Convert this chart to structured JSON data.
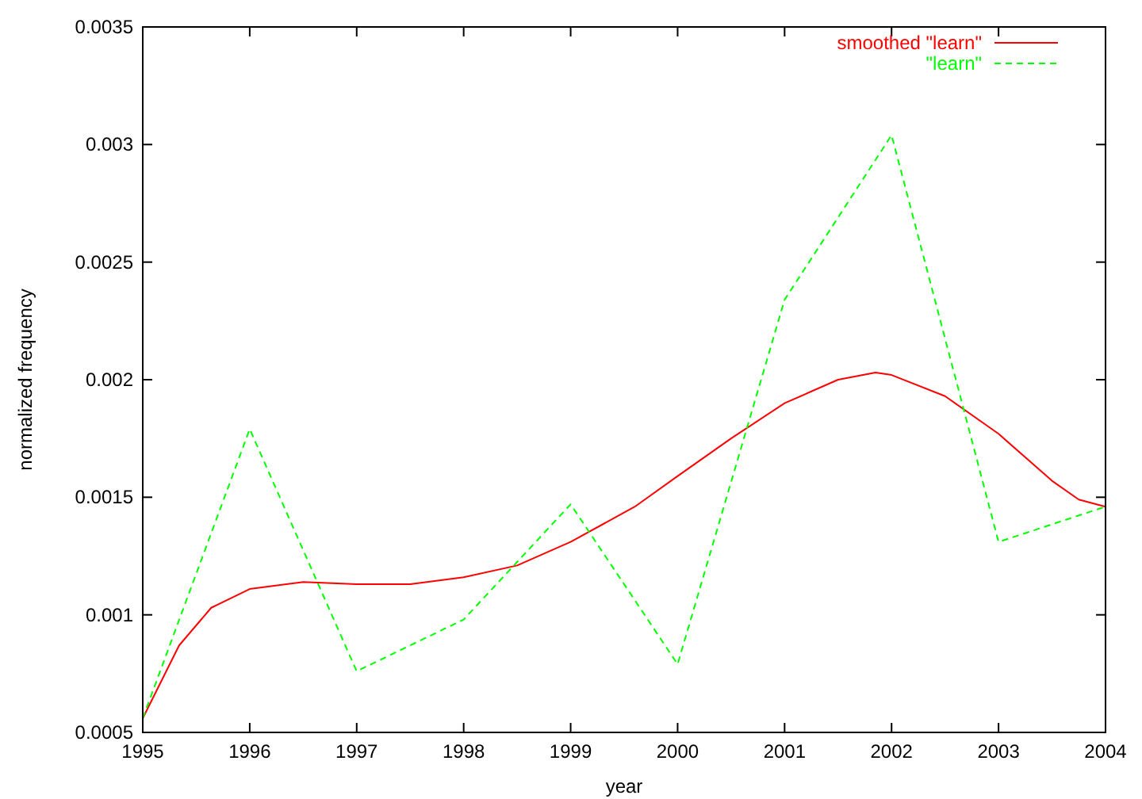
{
  "chart_data": {
    "type": "line",
    "xlabel": "year",
    "ylabel": "normalized frequency",
    "xlim": [
      1995,
      2004
    ],
    "xticks": [
      1995,
      1996,
      1997,
      1998,
      1999,
      2000,
      2001,
      2002,
      2003,
      2004
    ],
    "ylim": [
      0.0005,
      0.0035
    ],
    "yticks": [
      0.0005,
      0.001,
      0.0015,
      0.002,
      0.0025,
      0.003,
      0.0035
    ],
    "grid": false,
    "legend": "top right",
    "marker": "none",
    "series": [
      {
        "name": "smoothed \"learn\"",
        "color": "#ff0000",
        "line_style": "solid",
        "x": [
          1995,
          1995.34,
          1995.64,
          1996,
          1996.5,
          1997,
          1997.5,
          1998,
          1998.5,
          1999,
          1999.6,
          2000,
          2000.5,
          2001,
          2001.5,
          2001.85,
          2002,
          2002.5,
          2003,
          2003.5,
          2003.75,
          2004
        ],
        "values": [
          0.00056,
          0.00087,
          0.00103,
          0.00111,
          0.00114,
          0.00113,
          0.00113,
          0.00116,
          0.00121,
          0.00131,
          0.00146,
          0.00159,
          0.00175,
          0.0019,
          0.002,
          0.00203,
          0.00202,
          0.00193,
          0.00177,
          0.00157,
          0.00149,
          0.00146
        ]
      },
      {
        "name": "\"learn\"",
        "color": "#00ff00",
        "line_style": "dashed",
        "x": [
          1995,
          1996,
          1997,
          1998,
          1999,
          2000,
          2001,
          2002,
          2003,
          2004
        ],
        "values": [
          0.00056,
          0.00179,
          0.00076,
          0.00098,
          0.00147,
          0.00079,
          0.00234,
          0.00304,
          0.00131,
          0.00146
        ]
      }
    ]
  }
}
